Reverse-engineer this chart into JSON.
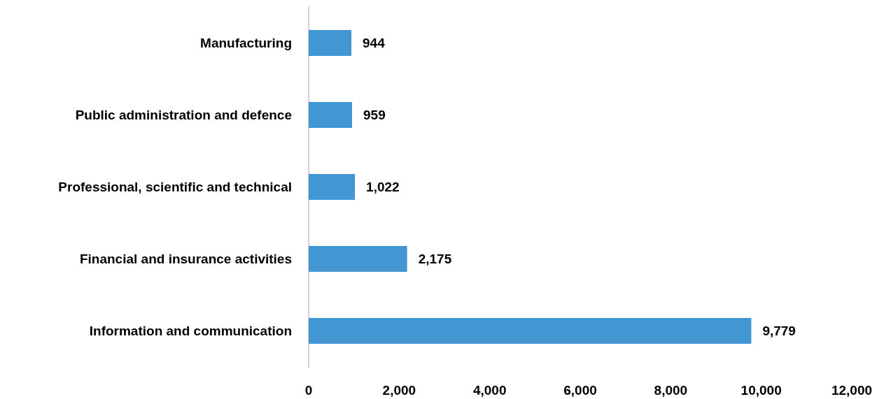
{
  "chart_data": {
    "type": "bar",
    "orientation": "horizontal",
    "categories": [
      "Manufacturing",
      "Public administration and defence",
      "Professional, scientific and technical",
      "Financial and insurance activities",
      "Information and communication"
    ],
    "values": [
      944,
      959,
      1022,
      2175,
      9779
    ],
    "value_labels": [
      "944",
      "959",
      "1,022",
      "2,175",
      "9,779"
    ],
    "color": "#4296d2",
    "xlim": [
      0,
      12000
    ],
    "xticks": [
      0,
      {
        "value": 2000,
        "label": "2,000"
      },
      {
        "value": 4000,
        "label": "4,000"
      },
      {
        "value": 6000,
        "label": "6,000"
      },
      {
        "value": 8000,
        "label": "8,000"
      },
      {
        "value": 10000,
        "label": "10,000"
      },
      {
        "value": 12000,
        "label": "12,000"
      }
    ],
    "grid": false
  }
}
